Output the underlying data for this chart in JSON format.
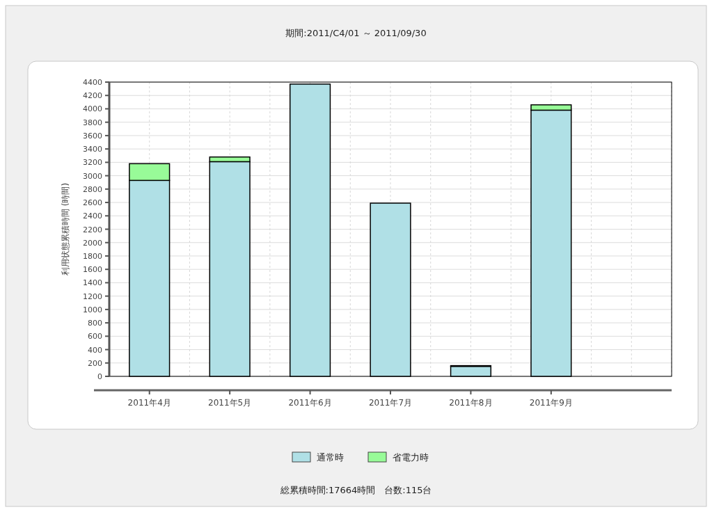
{
  "chart_data": {
    "type": "bar",
    "title": "期間:2011/C4/01 ～ 2011/09/30",
    "ylabel": "利用状態累積時間 (時間)",
    "categories": [
      "2011年4月",
      "2011年5月",
      "2011年6月",
      "2011年7月",
      "2011年8月",
      "2011年9月",
      null
    ],
    "series": [
      {
        "name": "通常時",
        "color": "#b0e0e6",
        "values": [
          2930,
          3210,
          4370,
          2590,
          150,
          3980,
          null
        ]
      },
      {
        "name": "省電力時",
        "color": "#98fb98",
        "values": [
          250,
          70,
          0,
          0,
          10,
          80,
          null
        ]
      }
    ],
    "stacked": true,
    "ylim": [
      0,
      4400
    ],
    "yticks": [
      0,
      200,
      400,
      600,
      800,
      1000,
      1200,
      1400,
      1600,
      1800,
      2000,
      2200,
      2400,
      2600,
      2800,
      3000,
      3200,
      3400,
      3600,
      3800,
      4000,
      4200,
      4400
    ],
    "grid": true,
    "legend": "bottom",
    "annotations": [
      "総累積時間:17664時間　台数:115台"
    ]
  }
}
